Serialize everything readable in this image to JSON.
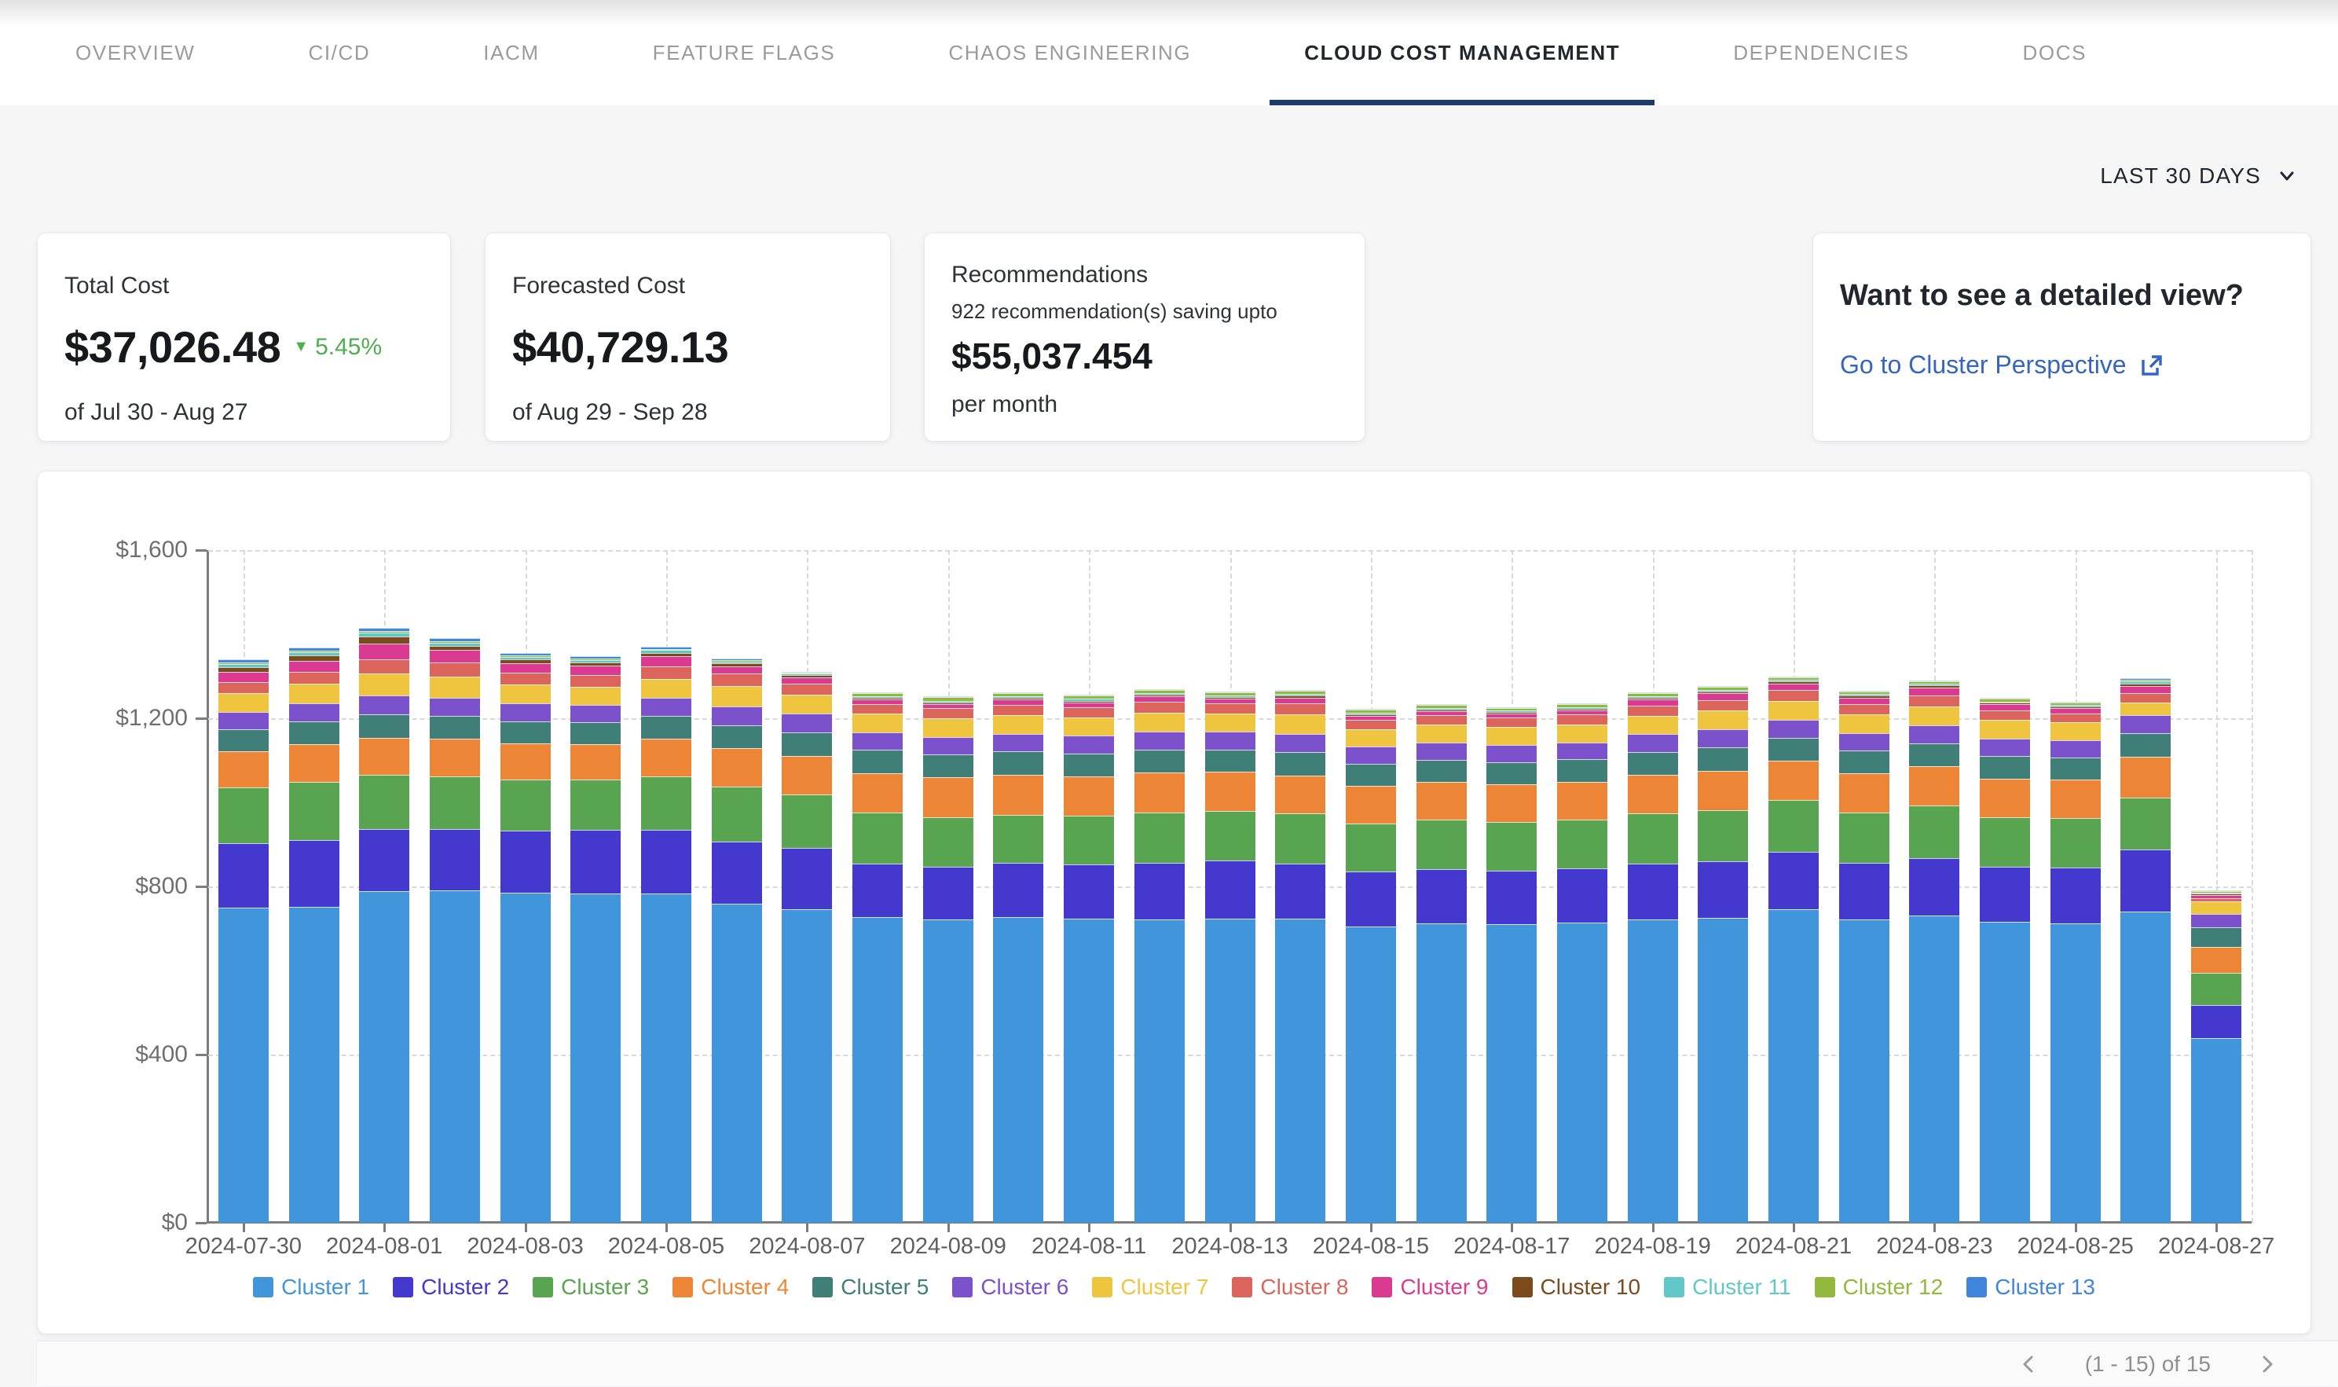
{
  "tabs": {
    "items": [
      {
        "label": "OVERVIEW",
        "active": false
      },
      {
        "label": "CI/CD",
        "active": false
      },
      {
        "label": "IACM",
        "active": false
      },
      {
        "label": "FEATURE FLAGS",
        "active": false
      },
      {
        "label": "CHAOS ENGINEERING",
        "active": false
      },
      {
        "label": "CLOUD COST MANAGEMENT",
        "active": true
      },
      {
        "label": "DEPENDENCIES",
        "active": false
      },
      {
        "label": "DOCS",
        "active": false
      }
    ],
    "active_underline_color": "#1c3c6e"
  },
  "filters": {
    "range_label": "LAST 30 DAYS"
  },
  "cards": {
    "total_cost": {
      "title": "Total Cost",
      "value": "$37,026.48",
      "delta": "5.45%",
      "delta_direction": "down",
      "delta_color": "#4caf50",
      "period": "of Jul 30 - Aug 27"
    },
    "forecasted_cost": {
      "title": "Forecasted Cost",
      "value": "$40,729.13",
      "period": "of Aug 29 - Sep 28"
    },
    "recommendations": {
      "title": "Recommendations",
      "subtitle": "922 recommendation(s) saving upto",
      "value": "$55,037.454",
      "suffix": "per month"
    },
    "detail_view": {
      "title": "Want to see a detailed view?",
      "link_label": "Go to Cluster Perspective",
      "link_color": "#3565c0"
    }
  },
  "chart_data": {
    "type": "bar",
    "stacked": true,
    "ylim": [
      0,
      1600
    ],
    "ytick_values": [
      0,
      400,
      800,
      1200,
      1600
    ],
    "ytick_labels": [
      "$0",
      "$400",
      "$800",
      "$1,200",
      "$1,600"
    ],
    "label_every": 2,
    "grid": "dashed",
    "legend_position": "bottom",
    "categories": [
      "2024-07-30",
      "2024-07-31",
      "2024-08-01",
      "2024-08-02",
      "2024-08-03",
      "2024-08-04",
      "2024-08-05",
      "2024-08-06",
      "2024-08-07",
      "2024-08-08",
      "2024-08-09",
      "2024-08-10",
      "2024-08-11",
      "2024-08-12",
      "2024-08-13",
      "2024-08-14",
      "2024-08-15",
      "2024-08-16",
      "2024-08-17",
      "2024-08-18",
      "2024-08-19",
      "2024-08-20",
      "2024-08-21",
      "2024-08-22",
      "2024-08-23",
      "2024-08-24",
      "2024-08-25",
      "2024-08-26",
      "2024-08-27"
    ],
    "series": [
      {
        "name": "Cluster 1",
        "color": "#4196db",
        "values": [
          750,
          752,
          789,
          790,
          785,
          784,
          784,
          759,
          746,
          727,
          722,
          728,
          723,
          721,
          724,
          723,
          705,
          712,
          710,
          714,
          722,
          726,
          745,
          722,
          730,
          715,
          712,
          740,
          440
        ]
      },
      {
        "name": "Cluster 2",
        "color": "#4438cf",
        "values": [
          152,
          158,
          148,
          146,
          148,
          150,
          150,
          148,
          145,
          128,
          125,
          128,
          130,
          135,
          138,
          132,
          130,
          130,
          128,
          129,
          132,
          134,
          138,
          134,
          138,
          132,
          132,
          148,
          78
        ]
      },
      {
        "name": "Cluster 3",
        "color": "#58a450",
        "values": [
          133,
          138,
          128,
          125,
          122,
          120,
          128,
          130,
          128,
          120,
          118,
          115,
          115,
          120,
          118,
          118,
          115,
          116,
          115,
          116,
          120,
          122,
          122,
          120,
          124,
          118,
          118,
          124,
          77
        ]
      },
      {
        "name": "Cluster 4",
        "color": "#ec8535",
        "values": [
          86,
          90,
          88,
          90,
          86,
          85,
          90,
          92,
          92,
          95,
          95,
          95,
          94,
          95,
          92,
          90,
          90,
          90,
          90,
          90,
          92,
          93,
          94,
          93,
          94,
          92,
          92,
          96,
          62
        ]
      },
      {
        "name": "Cluster 5",
        "color": "#407e78",
        "values": [
          53,
          55,
          56,
          54,
          52,
          52,
          54,
          55,
          56,
          55,
          54,
          55,
          54,
          55,
          54,
          56,
          52,
          53,
          52,
          53,
          54,
          55,
          55,
          54,
          55,
          53,
          52,
          56,
          46
        ]
      },
      {
        "name": "Cluster 6",
        "color": "#7c52cc",
        "values": [
          41,
          43,
          46,
          44,
          42,
          40,
          42,
          44,
          44,
          42,
          42,
          42,
          42,
          43,
          42,
          44,
          40,
          41,
          41,
          41,
          42,
          43,
          43,
          42,
          43,
          42,
          41,
          44,
          32
        ]
      },
      {
        "name": "Cluster 7",
        "color": "#efc43e",
        "values": [
          44,
          46,
          52,
          50,
          46,
          44,
          46,
          48,
          46,
          45,
          44,
          44,
          44,
          45,
          44,
          46,
          42,
          43,
          43,
          43,
          44,
          45,
          45,
          44,
          45,
          44,
          43,
          30,
          29
        ]
      },
      {
        "name": "Cluster 8",
        "color": "#db655c",
        "values": [
          27,
          28,
          34,
          33,
          28,
          27,
          30,
          30,
          26,
          22,
          24,
          25,
          24,
          26,
          24,
          26,
          22,
          22,
          22,
          23,
          24,
          25,
          25,
          24,
          26,
          23,
          22,
          22,
          8
        ]
      },
      {
        "name": "Cluster 9",
        "color": "#db3a91",
        "values": [
          24,
          26,
          36,
          30,
          22,
          23,
          24,
          18,
          14,
          10,
          10,
          12,
          12,
          12,
          10,
          14,
          10,
          10,
          10,
          10,
          14,
          16,
          16,
          16,
          18,
          14,
          13,
          16,
          7
        ]
      },
      {
        "name": "Cluster 10",
        "color": "#7b4b1e",
        "values": [
          12,
          13,
          18,
          10,
          9,
          8,
          8,
          6,
          5,
          4,
          4,
          4,
          4,
          4,
          4,
          5,
          4,
          4,
          4,
          4,
          5,
          5,
          5,
          5,
          5,
          4,
          4,
          6,
          4
        ]
      },
      {
        "name": "Cluster 11",
        "color": "#61c7c9",
        "values": [
          7,
          8,
          8,
          8,
          6,
          6,
          6,
          5,
          4,
          4,
          4,
          4,
          4,
          4,
          4,
          4,
          4,
          4,
          4,
          4,
          4,
          4,
          4,
          4,
          4,
          3,
          3,
          5,
          3
        ]
      },
      {
        "name": "Cluster 12",
        "color": "#92b93d",
        "values": [
          4,
          4,
          4,
          4,
          4,
          3,
          3,
          3,
          2,
          8,
          8,
          8,
          8,
          8,
          8,
          8,
          6,
          6,
          6,
          6,
          6,
          6,
          6,
          6,
          6,
          6,
          6,
          4,
          2
        ]
      },
      {
        "name": "Cluster 13",
        "color": "#4185dc",
        "values": [
          7,
          7,
          8,
          6,
          6,
          5,
          5,
          4,
          3,
          2,
          2,
          2,
          2,
          2,
          2,
          2,
          1,
          1,
          1,
          1,
          2,
          2,
          2,
          2,
          2,
          2,
          2,
          4,
          2
        ]
      }
    ]
  },
  "pagination": {
    "label": "(1 - 15) of 15"
  }
}
